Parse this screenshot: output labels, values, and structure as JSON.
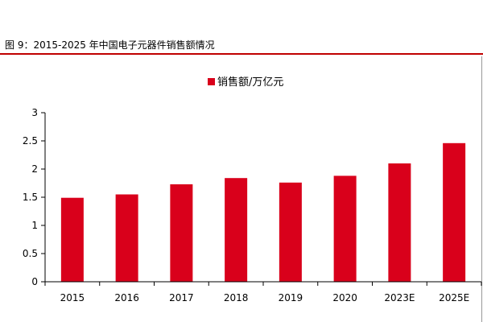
{
  "figure": {
    "title": "图 9：2015-2025 年中国电子元器件销售额情况"
  },
  "colors": {
    "accent": "#c00000",
    "bar": "#d9001b",
    "axis": "#000000"
  },
  "chart_data": {
    "type": "bar",
    "title": "",
    "xlabel": "",
    "ylabel": "",
    "categories": [
      "2015",
      "2016",
      "2017",
      "2018",
      "2019",
      "2020",
      "2023E",
      "2025E"
    ],
    "series": [
      {
        "name": "销售额/万亿元",
        "values": [
          1.49,
          1.55,
          1.73,
          1.84,
          1.76,
          1.88,
          2.1,
          2.46
        ]
      }
    ],
    "ylim": [
      0,
      3
    ],
    "yticks": [
      "0",
      "0.5",
      "1",
      "1.5",
      "2",
      "2.5",
      "3"
    ],
    "grid": false,
    "legend": "top-center"
  }
}
